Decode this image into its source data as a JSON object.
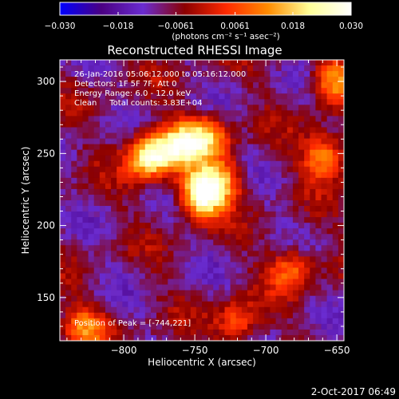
{
  "chart_data": {
    "type": "heatmap",
    "title": "Reconstructed RHESSI Image",
    "xlabel": "Heliocentric X (arcsec)",
    "ylabel": "Heliocentric Y (arcsec)",
    "xlim": [
      -845,
      -645
    ],
    "ylim": [
      120,
      315
    ],
    "xticks": [
      -800,
      -750,
      -700,
      -650
    ],
    "yticks": [
      150,
      200,
      250,
      300
    ],
    "colorbar": {
      "label": "(photons cm⁻² s⁻¹ asec⁻²)",
      "range": [
        -0.03,
        0.03
      ],
      "tick_values": [
        -0.03,
        -0.018,
        -0.0061,
        0.0061,
        0.018,
        0.03
      ],
      "tick_labels": [
        "−0.030",
        "−0.018",
        "−0.0061",
        "0.0061",
        "0.018",
        "0.030"
      ],
      "colors": [
        "#0000ff",
        "#4b0082",
        "#6a2cd0",
        "#8b0000",
        "#ff2a00",
        "#ff8c00",
        "#ffff99",
        "#ffffff"
      ]
    },
    "annotations": [
      "26-Jan-2016 05:06:12.000 to 05:16:12.000",
      "Detectors: 1F 5F 7F, Att 0",
      "Energy Range: 6.0 - 12.0 keV",
      "Clean     Total counts: 3.83E+04"
    ],
    "peak_label": "Position of Peak = [-744,221]",
    "sources": [
      {
        "x": -745,
        "y": 222,
        "value": 0.03
      },
      {
        "x": -782,
        "y": 248,
        "value": 0.026
      },
      {
        "x": -760,
        "y": 256,
        "value": 0.017
      },
      {
        "x": -741,
        "y": 262,
        "value": 0.012
      },
      {
        "x": -730,
        "y": 232,
        "value": 0.008
      },
      {
        "x": -658,
        "y": 248,
        "value": 0.014
      },
      {
        "x": -652,
        "y": 300,
        "value": 0.013
      },
      {
        "x": -828,
        "y": 130,
        "value": 0.008
      },
      {
        "x": -720,
        "y": 132,
        "value": 0.007
      },
      {
        "x": -682,
        "y": 170,
        "value": 0.008
      }
    ]
  },
  "footer": {
    "date": "2-Oct-2017 06:49"
  }
}
